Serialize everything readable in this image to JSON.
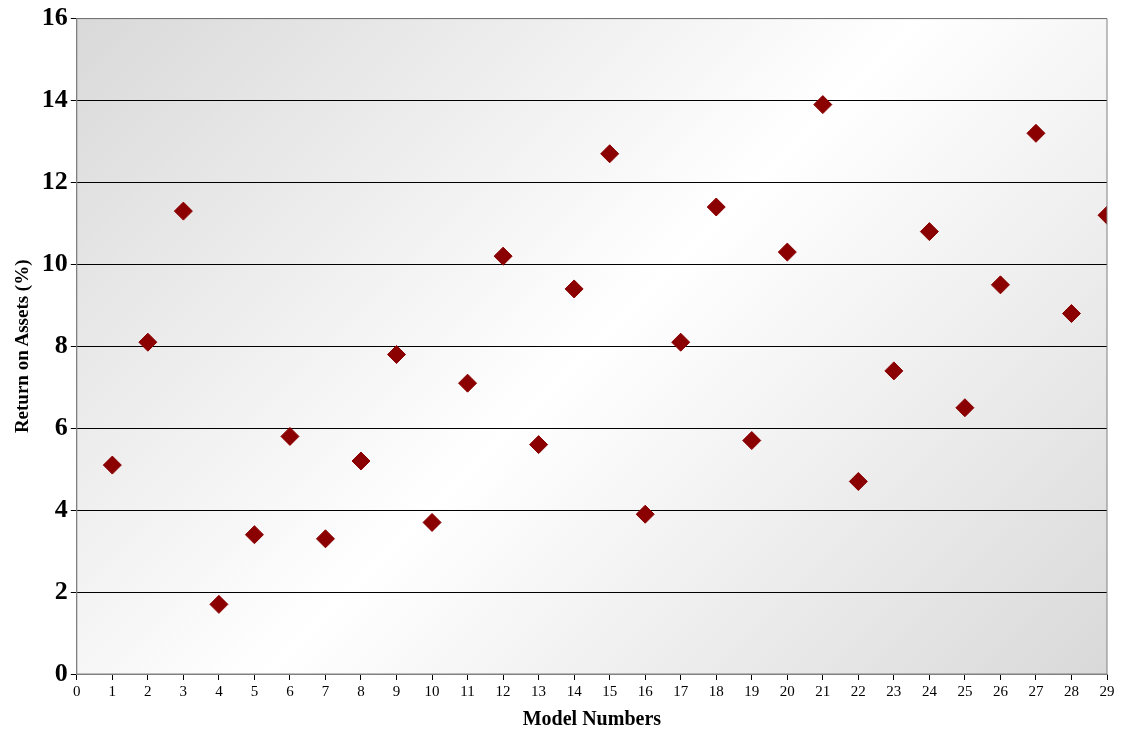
{
  "chart_data": {
    "type": "scatter",
    "xlabel": "Model Numbers",
    "ylabel": "Return on Assets (%)",
    "x": [
      1,
      2,
      3,
      4,
      5,
      6,
      7,
      8,
      9,
      10,
      11,
      12,
      13,
      14,
      15,
      16,
      17,
      18,
      19,
      20,
      21,
      22,
      23,
      24,
      25,
      26,
      27,
      28,
      29
    ],
    "series": [
      {
        "color": "#8b0000",
        "values": [
          5.1,
          8.1,
          11.3,
          1.7,
          3.4,
          5.8,
          3.3,
          5.2,
          7.8,
          3.7,
          7.1,
          10.2,
          5.6,
          9.4,
          12.7,
          3.9,
          8.1,
          11.4,
          5.7,
          10.3,
          13.9,
          4.7,
          7.4,
          10.8,
          6.5,
          9.5,
          13.2,
          8.8,
          11.2
        ]
      }
    ],
    "xlim": [
      0,
      29
    ],
    "xticks": [
      0,
      1,
      2,
      3,
      4,
      5,
      6,
      7,
      8,
      9,
      10,
      11,
      12,
      13,
      14,
      15,
      16,
      17,
      18,
      19,
      20,
      21,
      22,
      23,
      24,
      25,
      26,
      27,
      28,
      29
    ],
    "ylim": [
      0,
      16
    ],
    "yticks": [
      0,
      2,
      4,
      6,
      8,
      10,
      12,
      14,
      16
    ],
    "grid": "y",
    "legend": false,
    "marker": "diamond"
  }
}
